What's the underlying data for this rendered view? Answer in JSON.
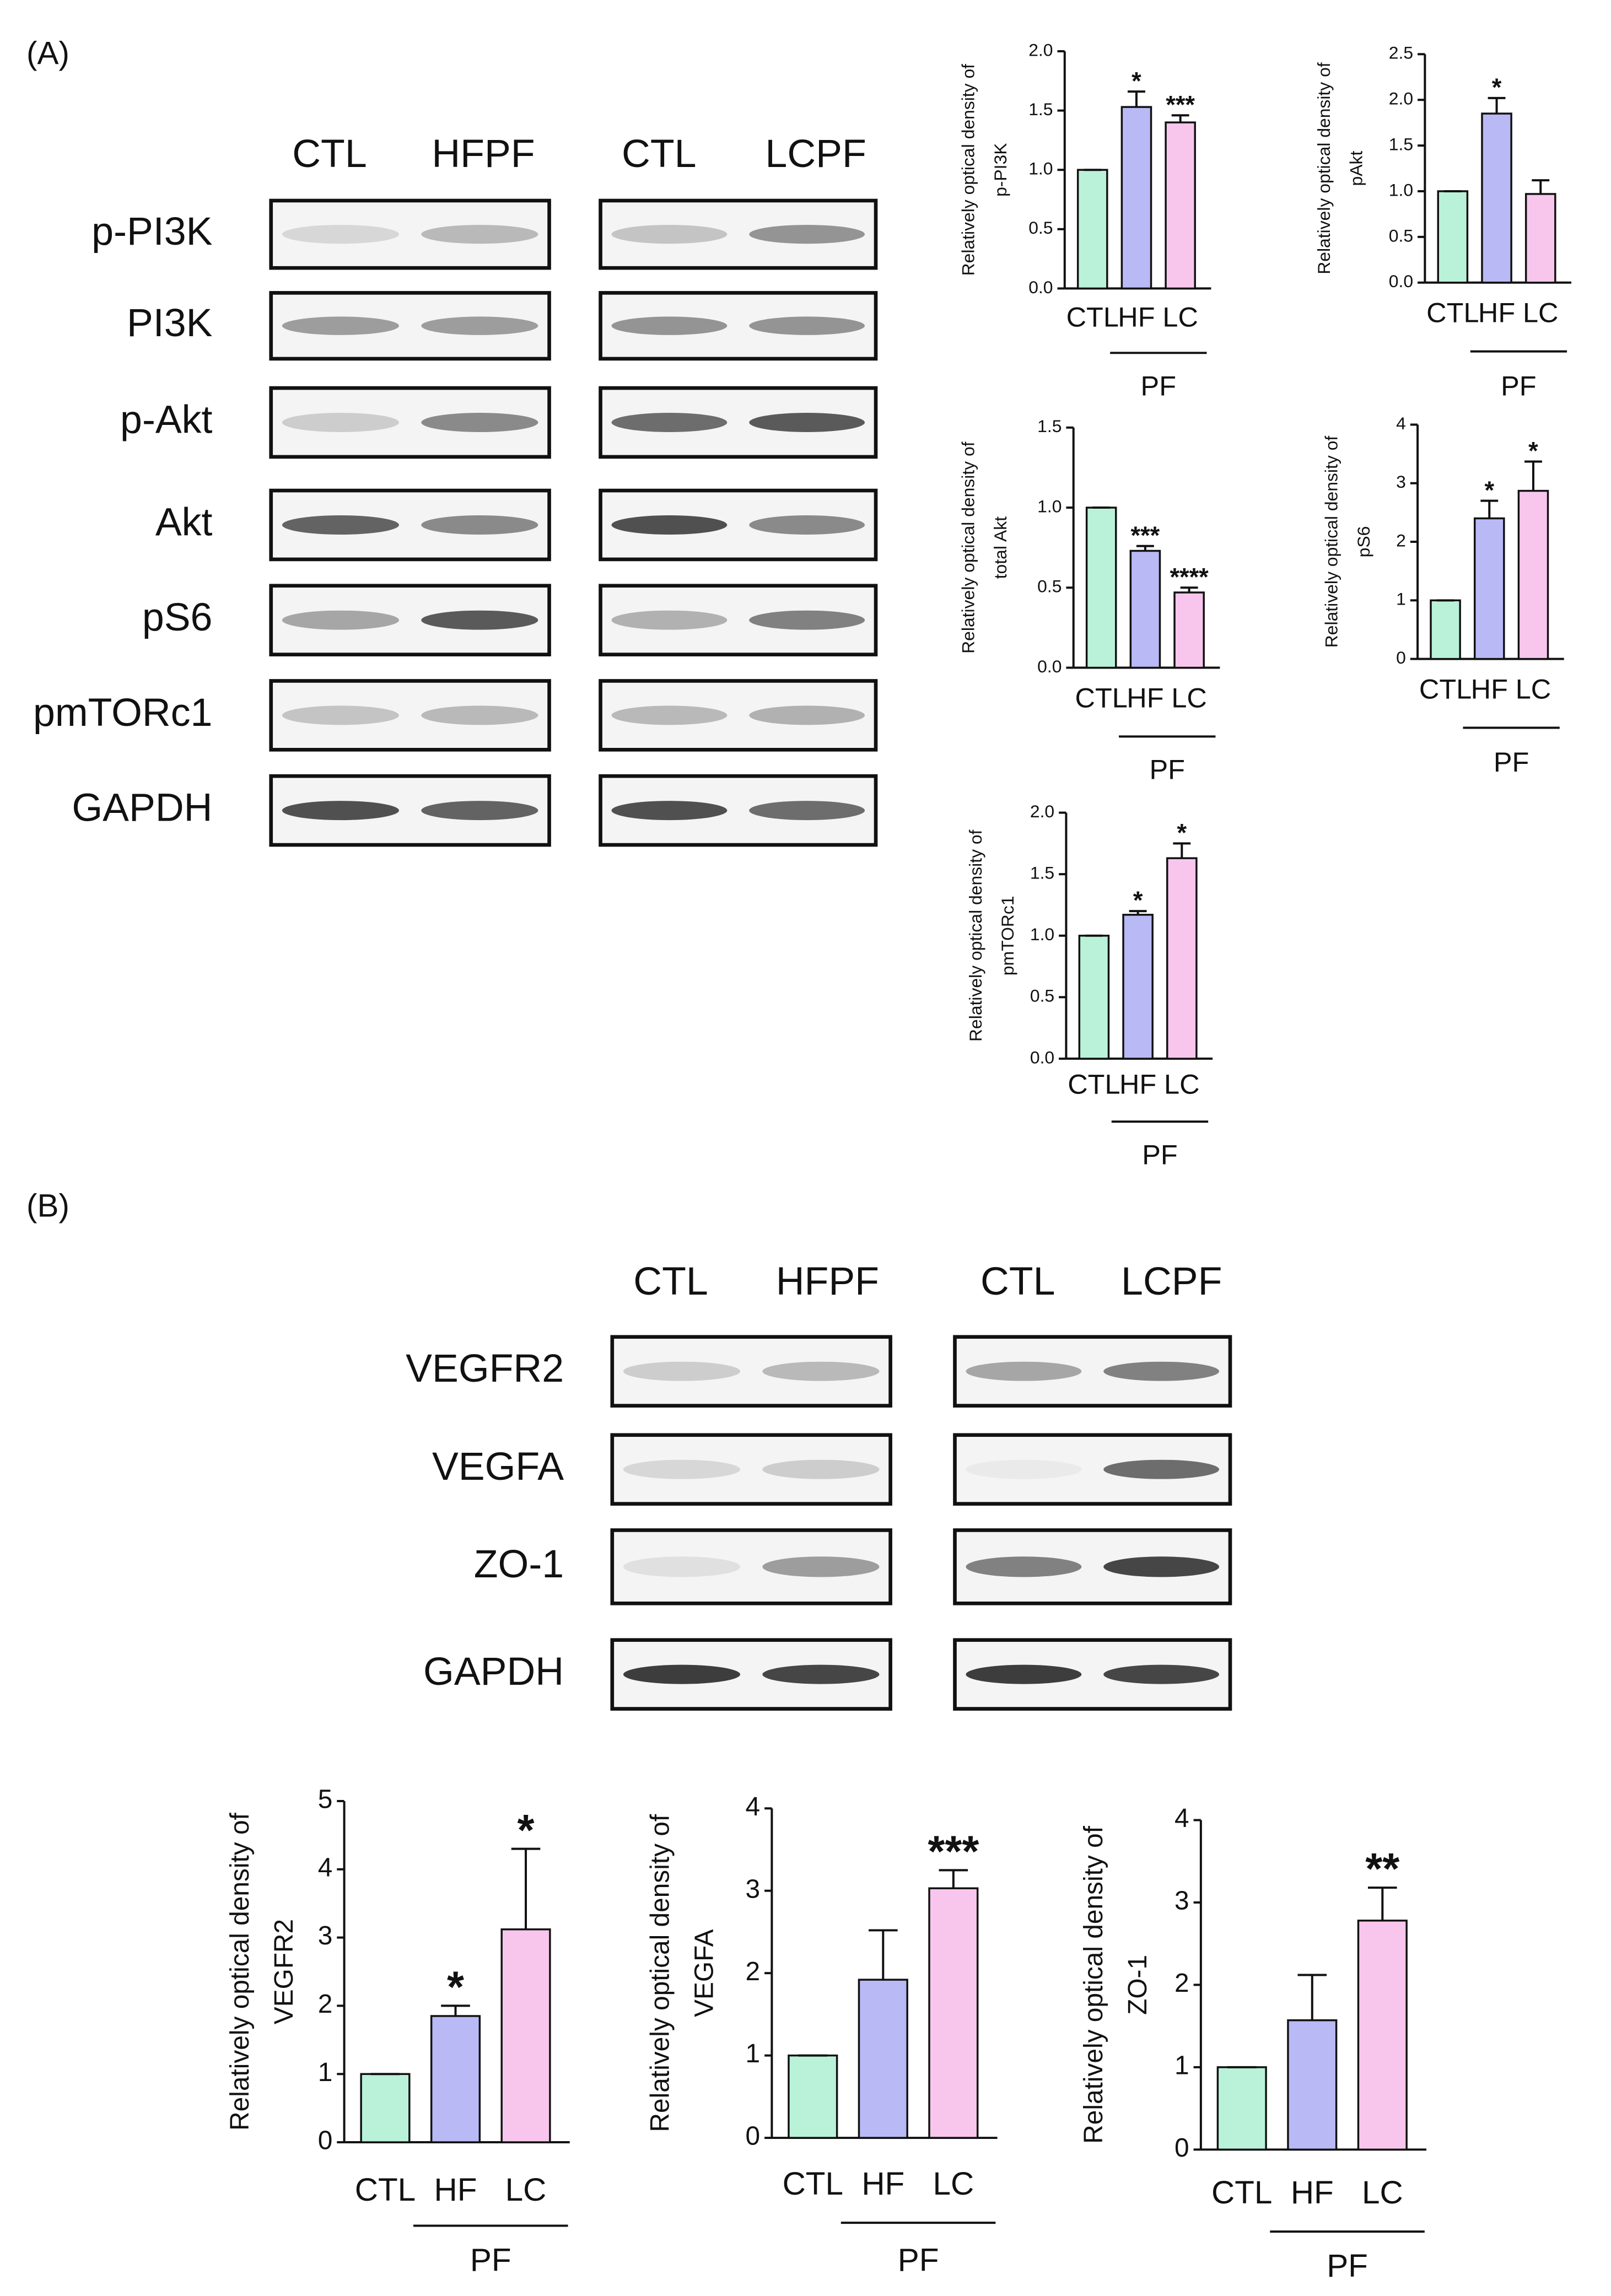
{
  "panels": [
    {
      "label": "(A)",
      "columns": [
        "CTL",
        "HFPF",
        "CTL",
        "LCPF"
      ],
      "rows": [
        "p-PI3K",
        "PI3K",
        "p-Akt",
        "Akt",
        "pS6",
        "pmTORc1",
        "GAPDH"
      ]
    },
    {
      "label": "(B)",
      "columns": [
        "CTL",
        "HFPF",
        "CTL",
        "LCPF"
      ],
      "rows": [
        "VEGFR2",
        "VEGFA",
        "ZO-1",
        "GAPDH"
      ]
    }
  ],
  "chart_data": [
    {
      "type": "bar",
      "ylabel": [
        "Relatively optical density of",
        "p-PI3K"
      ],
      "categories": [
        "CTL",
        "HF",
        "LC"
      ],
      "group_label": "PF",
      "values": [
        1.0,
        1.53,
        1.4
      ],
      "errors": [
        0,
        0.13,
        0.06
      ],
      "annotations": [
        null,
        "*",
        "***"
      ],
      "colors": [
        "#b9f2d9",
        "#b9b9f5",
        "#f8c6ec"
      ],
      "ylim": [
        0,
        2
      ],
      "yticks": [
        {
          "value": 0,
          "label": "0.0"
        },
        0.5,
        {
          "value": 1,
          "label": "1.0"
        },
        1.5,
        {
          "value": 2,
          "label": "2.0"
        }
      ]
    },
    {
      "type": "bar",
      "ylabel": [
        "Relatively optical density of",
        "pAkt"
      ],
      "categories": [
        "CTL",
        "HF",
        "LC"
      ],
      "group_label": "PF",
      "values": [
        1.0,
        1.85,
        0.97
      ],
      "errors": [
        0,
        0.17,
        0.15
      ],
      "annotations": [
        null,
        "*",
        null
      ],
      "colors": [
        "#b9f2d9",
        "#b9b9f5",
        "#f8c6ec"
      ],
      "ylim": [
        0,
        2.5
      ],
      "yticks": [
        {
          "value": 0,
          "label": "0.0"
        },
        0.5,
        {
          "value": 1,
          "label": "1.0"
        },
        1.5,
        {
          "value": 2,
          "label": "2.0"
        },
        2.5
      ]
    },
    {
      "type": "bar",
      "ylabel": [
        "Relatively optical density of",
        "total Akt"
      ],
      "categories": [
        "CTL",
        "HF",
        "LC"
      ],
      "group_label": "PF",
      "values": [
        1.0,
        0.73,
        0.47
      ],
      "errors": [
        0,
        0.03,
        0.03
      ],
      "annotations": [
        null,
        "***",
        "****"
      ],
      "colors": [
        "#b9f2d9",
        "#b9b9f5",
        "#f8c6ec"
      ],
      "ylim": [
        0,
        1.5
      ],
      "yticks": [
        {
          "value": 0,
          "label": "0.0"
        },
        0.5,
        {
          "value": 1,
          "label": "1.0"
        },
        1.5
      ]
    },
    {
      "type": "bar",
      "ylabel": [
        "Relatively optical density of",
        "pS6"
      ],
      "categories": [
        "CTL",
        "HF",
        "LC"
      ],
      "group_label": "PF",
      "values": [
        1.0,
        2.4,
        2.87
      ],
      "errors": [
        0,
        0.3,
        0.5
      ],
      "annotations": [
        null,
        "*",
        "*"
      ],
      "colors": [
        "#b9f2d9",
        "#b9b9f5",
        "#f8c6ec"
      ],
      "ylim": [
        0,
        4
      ],
      "yticks": [
        0,
        1,
        2,
        3,
        4
      ]
    },
    {
      "type": "bar",
      "ylabel": [
        "Relatively optical density of",
        "pmTORc1"
      ],
      "categories": [
        "CTL",
        "HF",
        "LC"
      ],
      "group_label": "PF",
      "values": [
        1.0,
        1.17,
        1.63
      ],
      "errors": [
        0,
        0.03,
        0.12
      ],
      "annotations": [
        null,
        "*",
        "*"
      ],
      "colors": [
        "#b9f2d9",
        "#b9b9f5",
        "#f8c6ec"
      ],
      "ylim": [
        0,
        2
      ],
      "yticks": [
        {
          "value": 0,
          "label": "0.0"
        },
        0.5,
        {
          "value": 1,
          "label": "1.0"
        },
        1.5,
        {
          "value": 2,
          "label": "2.0"
        }
      ]
    },
    {
      "type": "bar",
      "ylabel": [
        "Relatively optical density of",
        "VEGFR2"
      ],
      "categories": [
        "CTL",
        "HF",
        "LC"
      ],
      "group_label": "PF",
      "values": [
        1.0,
        1.85,
        3.12
      ],
      "errors": [
        0,
        0.15,
        1.18
      ],
      "annotations": [
        null,
        "*",
        "*"
      ],
      "colors": [
        "#b9f2d9",
        "#b9b9f5",
        "#f8c6ec"
      ],
      "ylim": [
        0,
        5
      ],
      "yticks": [
        0,
        1,
        2,
        3,
        4,
        5
      ]
    },
    {
      "type": "bar",
      "ylabel": [
        "Relatively optical density of",
        "VEGFA"
      ],
      "categories": [
        "CTL",
        "HF",
        "LC"
      ],
      "group_label": "PF",
      "values": [
        1.0,
        1.92,
        3.03
      ],
      "errors": [
        0,
        0.6,
        0.22
      ],
      "annotations": [
        null,
        null,
        "***"
      ],
      "colors": [
        "#b9f2d9",
        "#b9b9f5",
        "#f8c6ec"
      ],
      "ylim": [
        0,
        4
      ],
      "yticks": [
        0,
        1,
        2,
        3,
        4
      ]
    },
    {
      "type": "bar",
      "ylabel": [
        "Relatively optical density of",
        "ZO-1"
      ],
      "categories": [
        "CTL",
        "HF",
        "LC"
      ],
      "group_label": "PF",
      "values": [
        1.0,
        1.57,
        2.78
      ],
      "errors": [
        0,
        0.55,
        0.4
      ],
      "annotations": [
        null,
        null,
        "**"
      ],
      "colors": [
        "#b9f2d9",
        "#b9b9f5",
        "#f8c6ec"
      ],
      "ylim": [
        0,
        4
      ],
      "yticks": [
        0,
        1,
        2,
        3,
        4
      ]
    }
  ]
}
